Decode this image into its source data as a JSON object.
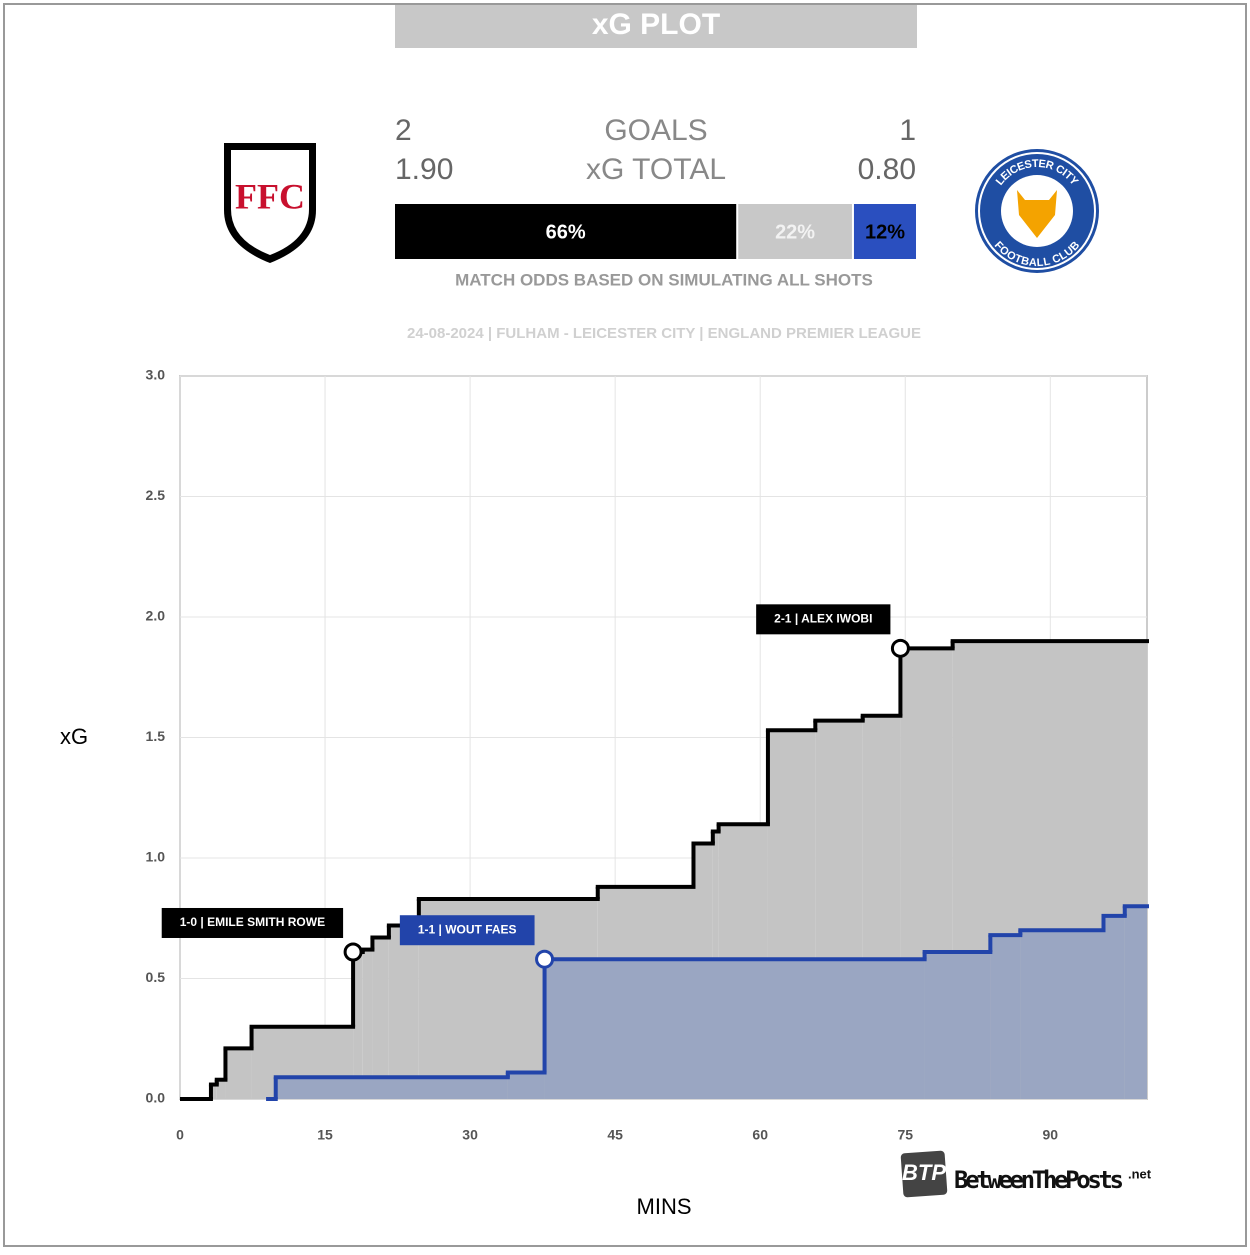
{
  "header": {
    "title": "xG PLOT",
    "home_goals": "2",
    "goals_label": "GOALS",
    "away_goals": "1",
    "home_xg": "1.90",
    "xg_label": "xG TOTAL",
    "away_xg": "0.80",
    "odds": [
      {
        "value": 66,
        "label": "66%",
        "color": "#000000",
        "text_color": "#ffffff"
      },
      {
        "value": 22,
        "label": "22%",
        "color": "#c8c8c8",
        "text_color": "#f2f2f2"
      },
      {
        "value": 12,
        "label": "12%",
        "color": "#2a4fbf",
        "text_color": "#000000"
      }
    ],
    "odds_note": "MATCH ODDS BASED ON SIMULATING ALL SHOTS",
    "match_info": "24-08-2024 | FULHAM - LEICESTER CITY | ENGLAND PREMIER LEAGUE",
    "home_logo_text": "FFC",
    "away_logo_text_top": "LEICESTER CITY",
    "away_logo_text_bottom": "FOOTBALL CLUB",
    "watermark_badge": "BTP",
    "watermark": "BetweenThePosts",
    "watermark_suffix": ".net"
  },
  "chart_data": {
    "type": "step",
    "x_label": "MINS",
    "y_label": "xG",
    "xlim": [
      0,
      100
    ],
    "ylim": [
      0,
      3
    ],
    "xticks": [
      0,
      15,
      30,
      45,
      60,
      75,
      90
    ],
    "yticks": [
      {
        "value": 0,
        "label": "0.0"
      },
      {
        "value": 0.5,
        "label": "0.5"
      },
      {
        "value": 1,
        "label": "1.0"
      },
      {
        "value": 1.5,
        "label": "1.5"
      },
      {
        "value": 2,
        "label": "2.0"
      },
      {
        "value": 2.5,
        "label": "2.5"
      },
      {
        "value": 3,
        "label": "3.0"
      }
    ],
    "grid": true,
    "series": [
      {
        "color": "#000000",
        "fill": "#c4c4c4",
        "x": [
          0,
          3.2,
          3.8,
          4.7,
          7.4,
          17.9,
          18.9,
          19.9,
          21.6,
          24.7,
          43.2,
          53.1,
          55.1,
          55.7,
          60.8,
          65.7,
          70.6,
          74.5,
          79.9
        ],
        "values": [
          0,
          0.06,
          0.08,
          0.21,
          0.3,
          0.61,
          0.62,
          0.67,
          0.72,
          0.83,
          0.88,
          1.06,
          1.11,
          1.14,
          1.53,
          1.57,
          1.59,
          1.87,
          1.9
        ],
        "goals": [
          {
            "x": 17.9,
            "y": 0.61,
            "label": "1-0 | EMILE SMITH ROWE"
          },
          {
            "x": 74.5,
            "y": 1.87,
            "label": "2-1 | ALEX IWOBI"
          }
        ]
      },
      {
        "color": "#2244aa",
        "fill": "#9aa6c2",
        "x": [
          8.9,
          9.9,
          33.9,
          37.7,
          77.0,
          83.8,
          86.9,
          95.5,
          97.7
        ],
        "values": [
          0,
          0.09,
          0.11,
          0.58,
          0.61,
          0.68,
          0.7,
          0.76,
          0.8
        ],
        "goals": [
          {
            "x": 37.7,
            "y": 0.58,
            "label": "1-1 | WOUT FAES"
          }
        ]
      }
    ]
  }
}
